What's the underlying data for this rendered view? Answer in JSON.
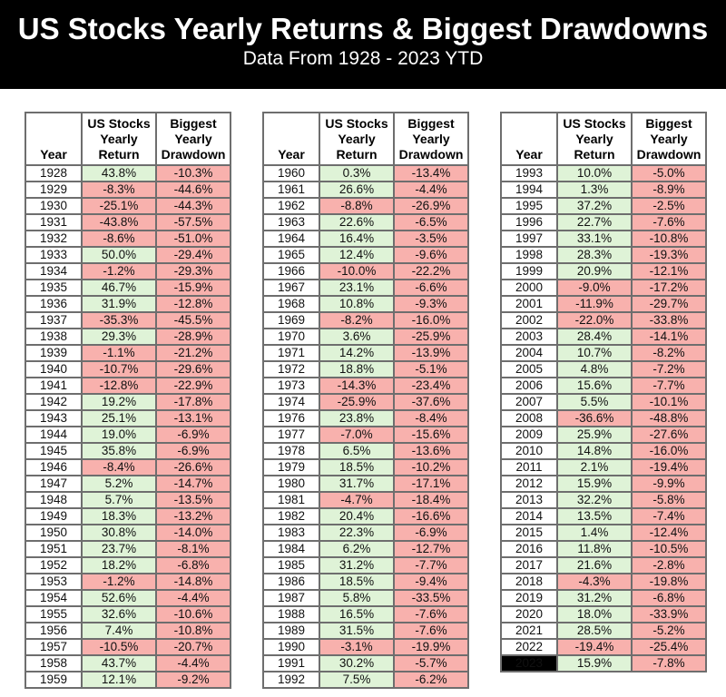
{
  "header": {
    "title": "US Stocks Yearly Returns & Biggest Drawdowns",
    "subtitle": "Data From 1928 - 2023 YTD"
  },
  "colors": {
    "banner_bg": "#000000",
    "banner_text": "#ffffff",
    "positive_bg": "#dff3d7",
    "negative_bg": "#f8b1ad",
    "grid_line": "#6e6e6e",
    "outer_border": "#1c1c1c",
    "highlight_bg": "#000000",
    "highlight_text": "#ffffff"
  },
  "table_headers": {
    "year": "Year",
    "return": "US Stocks Yearly Return",
    "drawdown": "Biggest Yearly Drawdown"
  },
  "chart_data": {
    "type": "table",
    "title": "US Stocks Yearly Returns & Biggest Drawdowns",
    "subtitle": "Data From 1928 - 2023 YTD",
    "columns": [
      "Year",
      "US Stocks Yearly Return",
      "Biggest Yearly Drawdown"
    ],
    "highlight_year": "2023",
    "color_rule": "positive returns green, negative returns and all drawdowns pink",
    "tables": [
      {
        "rows": [
          [
            "1928",
            "43.8%",
            "-10.3%"
          ],
          [
            "1929",
            "-8.3%",
            "-44.6%"
          ],
          [
            "1930",
            "-25.1%",
            "-44.3%"
          ],
          [
            "1931",
            "-43.8%",
            "-57.5%"
          ],
          [
            "1932",
            "-8.6%",
            "-51.0%"
          ],
          [
            "1933",
            "50.0%",
            "-29.4%"
          ],
          [
            "1934",
            "-1.2%",
            "-29.3%"
          ],
          [
            "1935",
            "46.7%",
            "-15.9%"
          ],
          [
            "1936",
            "31.9%",
            "-12.8%"
          ],
          [
            "1937",
            "-35.3%",
            "-45.5%"
          ],
          [
            "1938",
            "29.3%",
            "-28.9%"
          ],
          [
            "1939",
            "-1.1%",
            "-21.2%"
          ],
          [
            "1940",
            "-10.7%",
            "-29.6%"
          ],
          [
            "1941",
            "-12.8%",
            "-22.9%"
          ],
          [
            "1942",
            "19.2%",
            "-17.8%"
          ],
          [
            "1943",
            "25.1%",
            "-13.1%"
          ],
          [
            "1944",
            "19.0%",
            "-6.9%"
          ],
          [
            "1945",
            "35.8%",
            "-6.9%"
          ],
          [
            "1946",
            "-8.4%",
            "-26.6%"
          ],
          [
            "1947",
            "5.2%",
            "-14.7%"
          ],
          [
            "1948",
            "5.7%",
            "-13.5%"
          ],
          [
            "1949",
            "18.3%",
            "-13.2%"
          ],
          [
            "1950",
            "30.8%",
            "-14.0%"
          ],
          [
            "1951",
            "23.7%",
            "-8.1%"
          ],
          [
            "1952",
            "18.2%",
            "-6.8%"
          ],
          [
            "1953",
            "-1.2%",
            "-14.8%"
          ],
          [
            "1954",
            "52.6%",
            "-4.4%"
          ],
          [
            "1955",
            "32.6%",
            "-10.6%"
          ],
          [
            "1956",
            "7.4%",
            "-10.8%"
          ],
          [
            "1957",
            "-10.5%",
            "-20.7%"
          ],
          [
            "1958",
            "43.7%",
            "-4.4%"
          ],
          [
            "1959",
            "12.1%",
            "-9.2%"
          ]
        ]
      },
      {
        "rows": [
          [
            "1960",
            "0.3%",
            "-13.4%"
          ],
          [
            "1961",
            "26.6%",
            "-4.4%"
          ],
          [
            "1962",
            "-8.8%",
            "-26.9%"
          ],
          [
            "1963",
            "22.6%",
            "-6.5%"
          ],
          [
            "1964",
            "16.4%",
            "-3.5%"
          ],
          [
            "1965",
            "12.4%",
            "-9.6%"
          ],
          [
            "1966",
            "-10.0%",
            "-22.2%"
          ],
          [
            "1967",
            "23.1%",
            "-6.6%"
          ],
          [
            "1968",
            "10.8%",
            "-9.3%"
          ],
          [
            "1969",
            "-8.2%",
            "-16.0%"
          ],
          [
            "1970",
            "3.6%",
            "-25.9%"
          ],
          [
            "1971",
            "14.2%",
            "-13.9%"
          ],
          [
            "1972",
            "18.8%",
            "-5.1%"
          ],
          [
            "1973",
            "-14.3%",
            "-23.4%"
          ],
          [
            "1974",
            "-25.9%",
            "-37.6%"
          ],
          [
            "1976",
            "23.8%",
            "-8.4%"
          ],
          [
            "1977",
            "-7.0%",
            "-15.6%"
          ],
          [
            "1978",
            "6.5%",
            "-13.6%"
          ],
          [
            "1979",
            "18.5%",
            "-10.2%"
          ],
          [
            "1980",
            "31.7%",
            "-17.1%"
          ],
          [
            "1981",
            "-4.7%",
            "-18.4%"
          ],
          [
            "1982",
            "20.4%",
            "-16.6%"
          ],
          [
            "1983",
            "22.3%",
            "-6.9%"
          ],
          [
            "1984",
            "6.2%",
            "-12.7%"
          ],
          [
            "1985",
            "31.2%",
            "-7.7%"
          ],
          [
            "1986",
            "18.5%",
            "-9.4%"
          ],
          [
            "1987",
            "5.8%",
            "-33.5%"
          ],
          [
            "1988",
            "16.5%",
            "-7.6%"
          ],
          [
            "1989",
            "31.5%",
            "-7.6%"
          ],
          [
            "1990",
            "-3.1%",
            "-19.9%"
          ],
          [
            "1991",
            "30.2%",
            "-5.7%"
          ],
          [
            "1992",
            "7.5%",
            "-6.2%"
          ]
        ]
      },
      {
        "rows": [
          [
            "1993",
            "10.0%",
            "-5.0%"
          ],
          [
            "1994",
            "1.3%",
            "-8.9%"
          ],
          [
            "1995",
            "37.2%",
            "-2.5%"
          ],
          [
            "1996",
            "22.7%",
            "-7.6%"
          ],
          [
            "1997",
            "33.1%",
            "-10.8%"
          ],
          [
            "1998",
            "28.3%",
            "-19.3%"
          ],
          [
            "1999",
            "20.9%",
            "-12.1%"
          ],
          [
            "2000",
            "-9.0%",
            "-17.2%"
          ],
          [
            "2001",
            "-11.9%",
            "-29.7%"
          ],
          [
            "2002",
            "-22.0%",
            "-33.8%"
          ],
          [
            "2003",
            "28.4%",
            "-14.1%"
          ],
          [
            "2004",
            "10.7%",
            "-8.2%"
          ],
          [
            "2005",
            "4.8%",
            "-7.2%"
          ],
          [
            "2006",
            "15.6%",
            "-7.7%"
          ],
          [
            "2007",
            "5.5%",
            "-10.1%"
          ],
          [
            "2008",
            "-36.6%",
            "-48.8%"
          ],
          [
            "2009",
            "25.9%",
            "-27.6%"
          ],
          [
            "2010",
            "14.8%",
            "-16.0%"
          ],
          [
            "2011",
            "2.1%",
            "-19.4%"
          ],
          [
            "2012",
            "15.9%",
            "-9.9%"
          ],
          [
            "2013",
            "32.2%",
            "-5.8%"
          ],
          [
            "2014",
            "13.5%",
            "-7.4%"
          ],
          [
            "2015",
            "1.4%",
            "-12.4%"
          ],
          [
            "2016",
            "11.8%",
            "-10.5%"
          ],
          [
            "2017",
            "21.6%",
            "-2.8%"
          ],
          [
            "2018",
            "-4.3%",
            "-19.8%"
          ],
          [
            "2019",
            "31.2%",
            "-6.8%"
          ],
          [
            "2020",
            "18.0%",
            "-33.9%"
          ],
          [
            "2021",
            "28.5%",
            "-5.2%"
          ],
          [
            "2022",
            "-19.4%",
            "-25.4%"
          ],
          [
            "2023",
            "15.9%",
            "-7.8%"
          ]
        ]
      }
    ]
  }
}
